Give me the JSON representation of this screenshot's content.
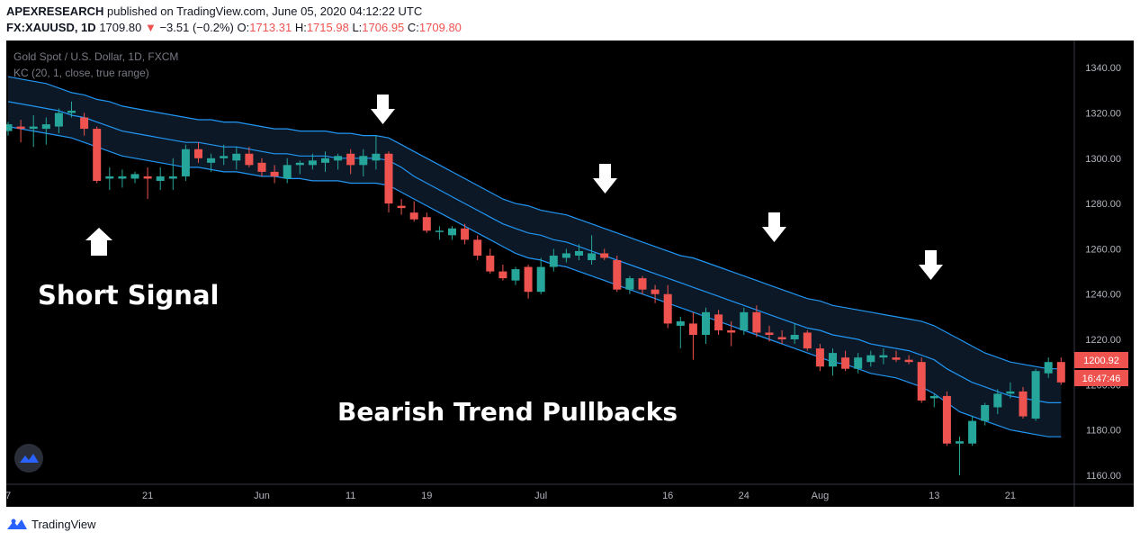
{
  "header": {
    "publisher": "APEXRESEARCH",
    "published_text": "published on TradingView.com, June 05, 2020 04:12:22 UTC",
    "symbol": "FX:XAUUSD, 1D",
    "last": "1709.80",
    "change_arrow": "▼",
    "change": "−3.51 (−0.2%)",
    "o_label": "O:",
    "o": "1713.31",
    "h_label": "H:",
    "h": "1715.98",
    "l_label": "L:",
    "l": "1706.95",
    "c_label": "C:",
    "c": "1709.80"
  },
  "legend": {
    "title": "Gold Spot / U.S. Dollar, 1D, FXCM",
    "indicator": "KC (20, 1, close, true range)"
  },
  "annotations": {
    "short_signal": "Short Signal",
    "bearish": "Bearish Trend Pullbacks"
  },
  "price_labels": {
    "last_price": "1200.92",
    "countdown": "16:47:46"
  },
  "footer": {
    "brand": "TradingView"
  },
  "colors": {
    "background": "#000000",
    "up": "#26a69a",
    "down": "#ef5350",
    "channel": "#2196f3",
    "channel_fill": "#0d1b2a"
  },
  "chart_data": {
    "type": "candlestick",
    "y_ticks": [
      1340,
      1320,
      1300,
      1280,
      1260,
      1240,
      1220,
      1200,
      1180,
      1160
    ],
    "y_tick_labels": [
      "1340.00",
      "1320.00",
      "1300.00",
      "1280.00",
      "1260.00",
      "1240.00",
      "1220.00",
      "1200.00",
      "1180.00",
      "1160.00"
    ],
    "ylim": [
      1156,
      1352
    ],
    "x_ticks": [
      {
        "index": 0,
        "label": "7"
      },
      {
        "index": 11,
        "label": "21"
      },
      {
        "index": 20,
        "label": "Jun"
      },
      {
        "index": 27,
        "label": "11"
      },
      {
        "index": 33,
        "label": "19"
      },
      {
        "index": 42,
        "label": "Jul"
      },
      {
        "index": 52,
        "label": "16"
      },
      {
        "index": 58,
        "label": "24"
      },
      {
        "index": 64,
        "label": "Aug"
      },
      {
        "index": 73,
        "label": "13"
      },
      {
        "index": 79,
        "label": "21"
      }
    ],
    "candles": [
      [
        1312,
        1316,
        1310,
        1315
      ],
      [
        1314,
        1317,
        1307,
        1313
      ],
      [
        1313,
        1319,
        1305,
        1314
      ],
      [
        1313,
        1318,
        1306,
        1315
      ],
      [
        1314,
        1322,
        1311,
        1320
      ],
      [
        1320,
        1325,
        1318,
        1321
      ],
      [
        1318,
        1320,
        1310,
        1313
      ],
      [
        1313,
        1314,
        1289,
        1290
      ],
      [
        1291,
        1296,
        1286,
        1292
      ],
      [
        1291,
        1295,
        1287,
        1292
      ],
      [
        1291,
        1294,
        1289,
        1293
      ],
      [
        1292,
        1296,
        1282,
        1291
      ],
      [
        1290,
        1296,
        1286,
        1292
      ],
      [
        1291,
        1300,
        1286,
        1292
      ],
      [
        1292,
        1306,
        1290,
        1304
      ],
      [
        1304,
        1307,
        1298,
        1300
      ],
      [
        1298,
        1302,
        1294,
        1300
      ],
      [
        1300,
        1306,
        1297,
        1301
      ],
      [
        1299,
        1305,
        1295,
        1302
      ],
      [
        1302,
        1305,
        1296,
        1297
      ],
      [
        1298,
        1300,
        1292,
        1294
      ],
      [
        1294,
        1297,
        1289,
        1292
      ],
      [
        1291,
        1300,
        1289,
        1297
      ],
      [
        1297,
        1299,
        1293,
        1298
      ],
      [
        1297,
        1302,
        1295,
        1299
      ],
      [
        1298,
        1303,
        1294,
        1300
      ],
      [
        1299,
        1302,
        1295,
        1301
      ],
      [
        1302,
        1304,
        1293,
        1297
      ],
      [
        1297,
        1304,
        1292,
        1301
      ],
      [
        1299,
        1310,
        1295,
        1302
      ],
      [
        1302,
        1303,
        1276,
        1280
      ],
      [
        1279,
        1282,
        1275,
        1278
      ],
      [
        1276,
        1281,
        1272,
        1273
      ],
      [
        1274,
        1276,
        1267,
        1268
      ],
      [
        1268,
        1270,
        1264,
        1268
      ],
      [
        1266,
        1270,
        1264,
        1269
      ],
      [
        1269,
        1271,
        1262,
        1264
      ],
      [
        1264,
        1266,
        1255,
        1257
      ],
      [
        1257,
        1260,
        1249,
        1250
      ],
      [
        1250,
        1253,
        1246,
        1247
      ],
      [
        1246,
        1252,
        1244,
        1251
      ],
      [
        1252,
        1253,
        1238,
        1241
      ],
      [
        1241,
        1256,
        1240,
        1252
      ],
      [
        1252,
        1260,
        1250,
        1257
      ],
      [
        1256,
        1260,
        1254,
        1258
      ],
      [
        1257,
        1262,
        1255,
        1259
      ],
      [
        1255,
        1266,
        1253,
        1258
      ],
      [
        1258,
        1260,
        1255,
        1256
      ],
      [
        1255,
        1257,
        1241,
        1242
      ],
      [
        1242,
        1248,
        1240,
        1247
      ],
      [
        1247,
        1248,
        1240,
        1242
      ],
      [
        1242,
        1244,
        1236,
        1240
      ],
      [
        1240,
        1244,
        1225,
        1227
      ],
      [
        1226,
        1230,
        1216,
        1228
      ],
      [
        1227,
        1232,
        1211,
        1222
      ],
      [
        1222,
        1234,
        1218,
        1232
      ],
      [
        1231,
        1233,
        1222,
        1224
      ],
      [
        1224,
        1228,
        1217,
        1223
      ],
      [
        1224,
        1234,
        1222,
        1232
      ],
      [
        1232,
        1235,
        1221,
        1223
      ],
      [
        1223,
        1226,
        1219,
        1222
      ],
      [
        1221,
        1224,
        1218,
        1220
      ],
      [
        1220,
        1227,
        1218,
        1222
      ],
      [
        1223,
        1224,
        1215,
        1216
      ],
      [
        1216,
        1218,
        1206,
        1208
      ],
      [
        1208,
        1216,
        1204,
        1214
      ],
      [
        1212,
        1215,
        1206,
        1207
      ],
      [
        1207,
        1214,
        1205,
        1212
      ],
      [
        1210,
        1215,
        1208,
        1213
      ],
      [
        1212,
        1216,
        1209,
        1213
      ],
      [
        1212,
        1215,
        1210,
        1211
      ],
      [
        1211,
        1213,
        1209,
        1210
      ],
      [
        1210,
        1212,
        1192,
        1193
      ],
      [
        1194,
        1196,
        1190,
        1195
      ],
      [
        1195,
        1197,
        1173,
        1174
      ],
      [
        1174,
        1177,
        1160,
        1175
      ],
      [
        1174,
        1186,
        1173,
        1184
      ],
      [
        1184,
        1192,
        1182,
        1191
      ],
      [
        1190,
        1198,
        1187,
        1196
      ],
      [
        1196,
        1201,
        1194,
        1197
      ],
      [
        1197,
        1199,
        1185,
        1186
      ],
      [
        1185,
        1207,
        1184,
        1206
      ],
      [
        1205,
        1212,
        1203,
        1210
      ],
      [
        1210,
        1212,
        1200,
        1201
      ]
    ],
    "kc_upper": [
      1336,
      1335,
      1334,
      1333,
      1331,
      1329,
      1328,
      1326,
      1325,
      1323,
      1322,
      1321,
      1320,
      1319,
      1318,
      1317,
      1317,
      1316,
      1316,
      1315,
      1314,
      1313,
      1313,
      1312,
      1312,
      1312,
      1311,
      1311,
      1310,
      1310,
      1309,
      1306,
      1303,
      1300,
      1297,
      1294,
      1291,
      1288,
      1285,
      1282,
      1280,
      1279,
      1277,
      1276,
      1275,
      1273,
      1271,
      1269,
      1267,
      1265,
      1263,
      1261,
      1259,
      1257,
      1256,
      1254,
      1252,
      1250,
      1248,
      1246,
      1244,
      1242,
      1240,
      1238,
      1237,
      1235,
      1234,
      1233,
      1232,
      1231,
      1230,
      1229,
      1228,
      1226,
      1223,
      1220,
      1217,
      1214,
      1212,
      1210,
      1209,
      1208,
      1207,
      1207
    ],
    "kc_middle": [
      1325,
      1324,
      1323,
      1322,
      1321,
      1319,
      1318,
      1316,
      1314,
      1312,
      1311,
      1310,
      1309,
      1308,
      1307,
      1307,
      1306,
      1305,
      1305,
      1304,
      1303,
      1302,
      1302,
      1301,
      1301,
      1301,
      1300,
      1300,
      1300,
      1300,
      1299,
      1296,
      1292,
      1289,
      1286,
      1283,
      1280,
      1277,
      1274,
      1271,
      1269,
      1267,
      1266,
      1264,
      1263,
      1261,
      1259,
      1257,
      1255,
      1253,
      1251,
      1249,
      1247,
      1245,
      1243,
      1241,
      1239,
      1237,
      1235,
      1233,
      1231,
      1229,
      1227,
      1225,
      1224,
      1222,
      1221,
      1220,
      1218,
      1217,
      1216,
      1215,
      1213,
      1211,
      1207,
      1204,
      1201,
      1199,
      1197,
      1195,
      1194,
      1193,
      1192,
      1192
    ],
    "kc_lower": [
      1314,
      1313,
      1312,
      1311,
      1310,
      1309,
      1307,
      1305,
      1303,
      1301,
      1300,
      1299,
      1298,
      1297,
      1296,
      1296,
      1295,
      1294,
      1294,
      1293,
      1292,
      1292,
      1291,
      1291,
      1290,
      1290,
      1290,
      1289,
      1289,
      1289,
      1288,
      1285,
      1282,
      1279,
      1276,
      1273,
      1270,
      1267,
      1264,
      1261,
      1258,
      1256,
      1255,
      1253,
      1252,
      1250,
      1248,
      1246,
      1244,
      1242,
      1240,
      1238,
      1236,
      1234,
      1232,
      1230,
      1228,
      1226,
      1224,
      1222,
      1220,
      1218,
      1216,
      1214,
      1212,
      1210,
      1209,
      1207,
      1205,
      1204,
      1203,
      1201,
      1199,
      1196,
      1192,
      1188,
      1186,
      1184,
      1182,
      1180,
      1179,
      1178,
      1177,
      1177
    ]
  }
}
